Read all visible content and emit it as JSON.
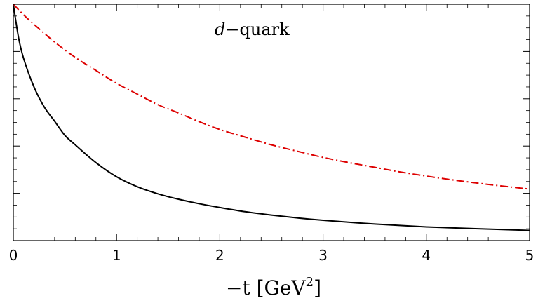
{
  "chart_data": {
    "type": "line",
    "annotation": {
      "italic_part": "d",
      "rest": "−quark"
    },
    "xlabel": {
      "prefix": "−t [GeV",
      "superscript": "2",
      "suffix": "]"
    },
    "xlim": [
      0,
      5
    ],
    "ylim": [
      0,
      1
    ],
    "x_ticks": [
      {
        "value": 0,
        "label": "0"
      },
      {
        "value": 1,
        "label": "1"
      },
      {
        "value": 2,
        "label": "2"
      },
      {
        "value": 3,
        "label": "3"
      },
      {
        "value": 4,
        "label": "4"
      },
      {
        "value": 5,
        "label": "5"
      }
    ],
    "y_ticks": [
      0.0,
      0.2,
      0.4,
      0.6,
      0.8,
      1.0
    ],
    "grid": false,
    "series": [
      {
        "color": "#000000",
        "style": "solid",
        "points": [
          [
            0,
            1.0
          ],
          [
            0.05,
            0.86
          ],
          [
            0.1,
            0.77
          ],
          [
            0.2,
            0.65
          ],
          [
            0.3,
            0.565
          ],
          [
            0.4,
            0.505
          ],
          [
            0.5,
            0.445
          ],
          [
            0.6,
            0.405
          ],
          [
            0.8,
            0.33
          ],
          [
            1.0,
            0.27
          ],
          [
            1.2,
            0.228
          ],
          [
            1.4,
            0.198
          ],
          [
            1.6,
            0.175
          ],
          [
            1.8,
            0.156
          ],
          [
            2.0,
            0.14
          ],
          [
            2.25,
            0.122
          ],
          [
            2.5,
            0.108
          ],
          [
            2.75,
            0.096
          ],
          [
            3.0,
            0.086
          ],
          [
            3.5,
            0.07
          ],
          [
            4.0,
            0.058
          ],
          [
            4.5,
            0.05
          ],
          [
            5.0,
            0.043
          ]
        ]
      },
      {
        "color": "#dd0000",
        "style": "dash-dot",
        "points": [
          [
            0,
            1.0
          ],
          [
            0.1,
            0.955
          ],
          [
            0.2,
            0.915
          ],
          [
            0.4,
            0.84
          ],
          [
            0.6,
            0.775
          ],
          [
            0.8,
            0.72
          ],
          [
            1.0,
            0.665
          ],
          [
            1.2,
            0.62
          ],
          [
            1.4,
            0.575
          ],
          [
            1.6,
            0.54
          ],
          [
            1.8,
            0.503
          ],
          [
            2.0,
            0.47
          ],
          [
            2.25,
            0.437
          ],
          [
            2.5,
            0.405
          ],
          [
            2.75,
            0.378
          ],
          [
            3.0,
            0.352
          ],
          [
            3.25,
            0.33
          ],
          [
            3.5,
            0.31
          ],
          [
            3.75,
            0.29
          ],
          [
            4.0,
            0.273
          ],
          [
            4.25,
            0.257
          ],
          [
            4.5,
            0.243
          ],
          [
            4.75,
            0.23
          ],
          [
            5.0,
            0.218
          ]
        ]
      }
    ]
  }
}
